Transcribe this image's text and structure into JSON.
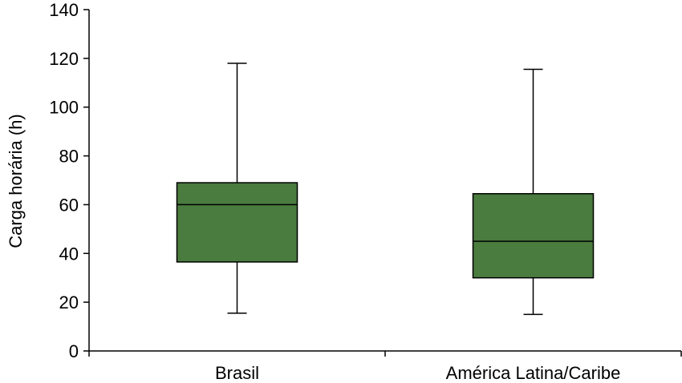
{
  "chart_data": {
    "type": "boxplot",
    "ylabel": "Carga horária (h)",
    "ylim": [
      0,
      140
    ],
    "yticks": [
      0,
      20,
      40,
      60,
      80,
      100,
      120,
      140
    ],
    "categories": [
      "Brasil",
      "América Latina/Caribe"
    ],
    "series": [
      {
        "category": "Brasil",
        "min": 15.5,
        "q1": 36.5,
        "median": 60,
        "q3": 69,
        "max": 118
      },
      {
        "category": "América Latina/Caribe",
        "min": 15,
        "q1": 30,
        "median": 45,
        "q3": 64.5,
        "max": 115.5
      }
    ],
    "box_color": "#4a7b3f",
    "line_color": "#000000",
    "grid": false,
    "legend": "none"
  }
}
